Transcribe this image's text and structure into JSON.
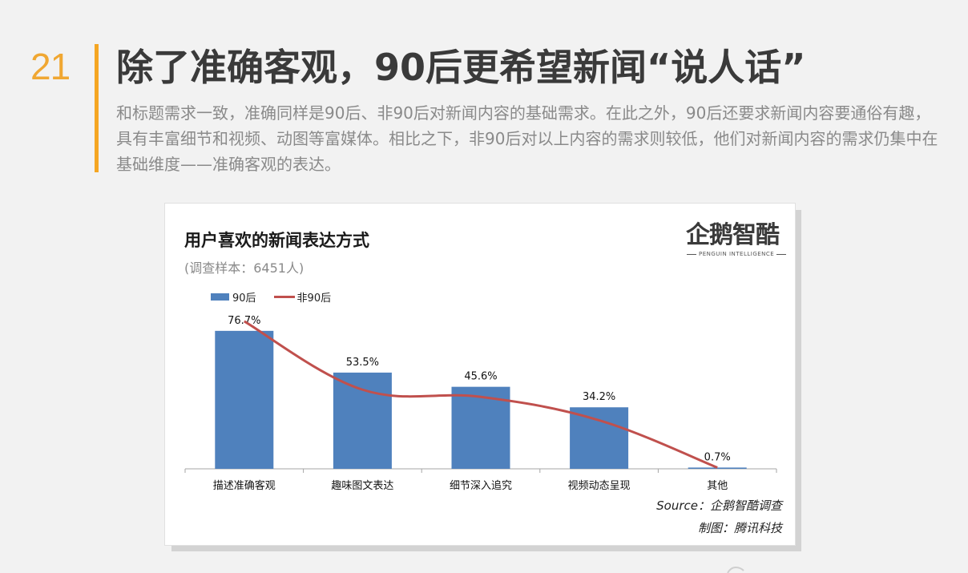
{
  "page": {
    "number": "21",
    "title": "除了准确客观，90后更希望新闻“说人话”",
    "description": "和标题需求一致，准确同样是90后、非90后对新闻内容的基础需求。在此之外，90后还要求新闻内容要通俗有趣，具有丰富细节和视频、动图等富媒体。相比之下，非90后对以上内容的需求则较低，他们对新闻内容的需求仍集中在基础维度——准确客观的表达。"
  },
  "logo": {
    "name": "企鹅智酷",
    "subtitle": "PENGUIN INTELLIGENCE"
  },
  "source": "Source：企鹅智酷调查",
  "credit": "制图：腾讯科技",
  "colors": {
    "accent": "#f5a623",
    "bar": "#4f81bd",
    "line": "#c0504d"
  },
  "chart_data": {
    "type": "bar",
    "title": "用户喜欢的新闻表达方式",
    "subtitle": "(调查样本：6451人)",
    "categories": [
      "描述准确客观",
      "趣味图文表达",
      "细节深入追究",
      "视频动态呈现",
      "其他"
    ],
    "series": [
      {
        "name": "90后",
        "type": "bar",
        "values": [
          76.7,
          53.5,
          45.6,
          34.2,
          0.7
        ],
        "labels": [
          "76.7%",
          "53.5%",
          "45.6%",
          "34.2%",
          "0.7%"
        ]
      },
      {
        "name": "非90后",
        "type": "line",
        "values": [
          82.0,
          44.0,
          40.0,
          27.0,
          0.7
        ]
      }
    ],
    "ylim": [
      0,
      90
    ],
    "legend": "top-left",
    "grid": false
  }
}
